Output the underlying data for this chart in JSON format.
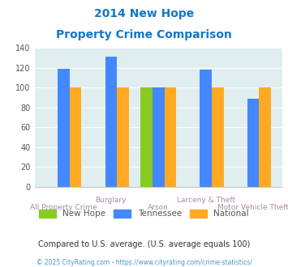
{
  "title_line1": "2014 New Hope",
  "title_line2": "Property Crime Comparison",
  "categories": [
    "All Property Crime",
    "Burglary",
    "Arson",
    "Larceny & Theft",
    "Motor Vehicle Theft"
  ],
  "x_labels_top": [
    "",
    "Burglary",
    "",
    "Larceny & Theft",
    ""
  ],
  "x_labels_bottom": [
    "All Property Crime",
    "",
    "Arson",
    "",
    "Motor Vehicle Theft"
  ],
  "new_hope": [
    0,
    0,
    100,
    0,
    0
  ],
  "tennessee": [
    119,
    131,
    100,
    118,
    89
  ],
  "national": [
    100,
    100,
    100,
    100,
    100
  ],
  "colors": {
    "new_hope": "#88cc22",
    "tennessee": "#4488ff",
    "national": "#ffaa22"
  },
  "ylim": [
    0,
    140
  ],
  "yticks": [
    0,
    20,
    40,
    60,
    80,
    100,
    120,
    140
  ],
  "title_color": "#1177cc",
  "footnote": "Compared to U.S. average. (U.S. average equals 100)",
  "copyright": "© 2025 CityRating.com - https://www.cityrating.com/crime-statistics/",
  "footnote_color": "#333333",
  "copyright_color": "#4499cc",
  "xlabel_color": "#aa88aa",
  "bg_color": "#ffffff",
  "plot_bg": "#e0eef0"
}
